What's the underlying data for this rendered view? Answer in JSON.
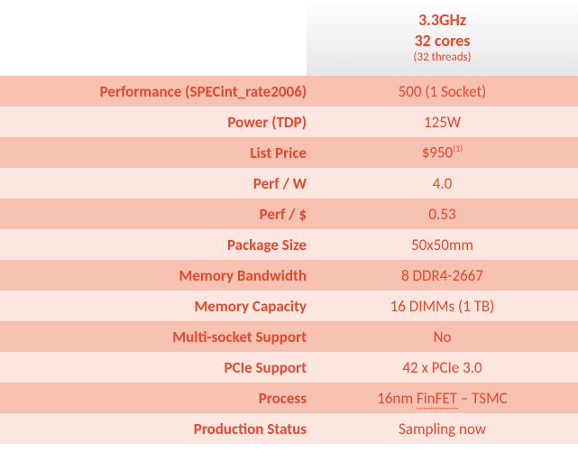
{
  "colors": {
    "text": "#e2492f",
    "row_alt_a": "#f8c2b3",
    "row_alt_b": "#fde6df",
    "header_grad_top": "#ffffff",
    "header_grad_bottom": "#e6e6e6"
  },
  "header": {
    "line1": "3.3GHz",
    "line2": "32 cores",
    "line3": "(32 threads)"
  },
  "rows": [
    {
      "label": "Performance (SPECint_rate2006)",
      "value": "500 (1 Socket)"
    },
    {
      "label": "Power (TDP)",
      "value": "125W"
    },
    {
      "label": "List Price",
      "value": "$950",
      "sup": "(1)"
    },
    {
      "label": "Perf / W",
      "value": "4.0"
    },
    {
      "label": "Perf / $",
      "value": "0.53"
    },
    {
      "label": "Package Size",
      "value": "50x50mm"
    },
    {
      "label": "Memory Bandwidth",
      "value": "8 DDR4-2667"
    },
    {
      "label": "Memory Capacity",
      "value": "16 DIMMs (1 TB)"
    },
    {
      "label": "Multi-socket Support",
      "value": "No"
    },
    {
      "label": "PCIe Support",
      "value": "42 x PCIe 3.0"
    },
    {
      "label": "Process",
      "value_html": "16nm <span class=\"dotted\">FinFET</span> – TSMC"
    },
    {
      "label": "Production Status",
      "value": "Sampling now"
    }
  ]
}
